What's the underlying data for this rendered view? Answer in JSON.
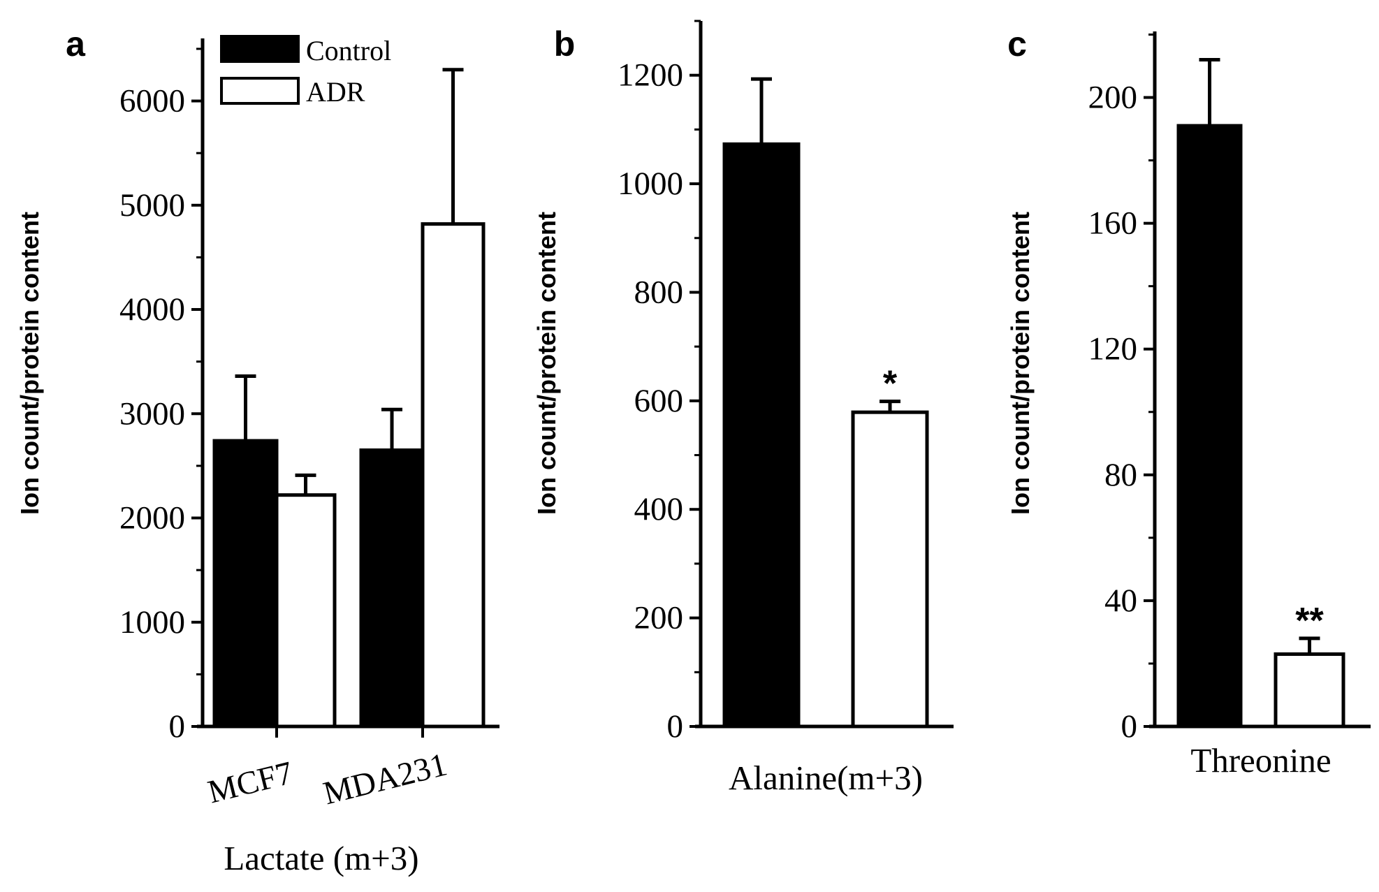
{
  "chart_data": [
    {
      "type": "bar",
      "panel_label": "a",
      "title": "",
      "ylabel": "Ion count/protein content",
      "xlabel": "Lactate (m+3)",
      "categories": [
        "MCF7",
        "MDA231"
      ],
      "series": [
        {
          "name": "Control",
          "values": [
            2740,
            2650
          ],
          "errors": [
            620,
            390
          ]
        },
        {
          "name": "ADR",
          "values": [
            2220,
            4820
          ],
          "errors": [
            190,
            1480
          ]
        }
      ],
      "ylim": [
        0,
        6600
      ],
      "yticks": [
        0,
        1000,
        2000,
        3000,
        4000,
        5000,
        6000
      ],
      "legend": {
        "position": "top-left",
        "entries": [
          "Control",
          "ADR"
        ]
      },
      "annotations": []
    },
    {
      "type": "bar",
      "panel_label": "b",
      "title": "",
      "ylabel": "Ion count/protein content",
      "xlabel": "Alanine(m+3)",
      "categories": [
        "Control",
        "ADR"
      ],
      "values": [
        1073,
        579
      ],
      "errors": [
        120,
        20
      ],
      "ylim": [
        0,
        1300
      ],
      "yticks": [
        0,
        200,
        400,
        600,
        800,
        1000,
        1200
      ],
      "annotations": [
        {
          "bar": "ADR",
          "text": "*"
        }
      ]
    },
    {
      "type": "bar",
      "panel_label": "c",
      "title": "",
      "ylabel": "Ion count/protein content",
      "xlabel": "Threonine",
      "categories": [
        "Control",
        "ADR"
      ],
      "values": [
        191,
        23
      ],
      "errors": [
        21,
        5
      ],
      "ylim": [
        0,
        221
      ],
      "yticks": [
        0,
        40,
        80,
        120,
        160,
        200
      ],
      "annotations": [
        {
          "bar": "ADR",
          "text": "**"
        }
      ]
    }
  ],
  "colors": {
    "control": "#000000",
    "adr": "#ffffff",
    "axis": "#000000"
  }
}
